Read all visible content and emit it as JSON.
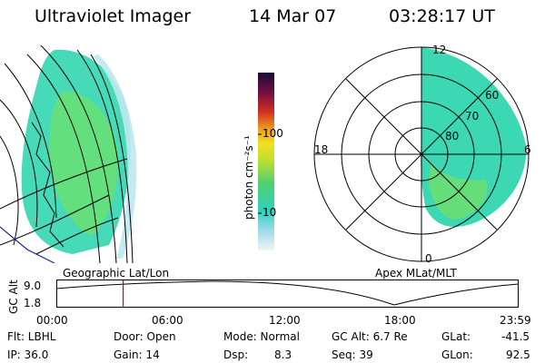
{
  "header": {
    "instrument": "Ultraviolet Imager",
    "date": "14 Mar 07",
    "time": "03:28:17 UT"
  },
  "colorbar": {
    "unit_label": "photon cm⁻²s⁻¹",
    "ticks": [
      "100",
      "10"
    ]
  },
  "geographic_panel": {
    "label": "Geographic Lat/Lon"
  },
  "polar_panel": {
    "label": "Apex MLat/MLT",
    "mlt_labels": [
      "12",
      "18",
      "6",
      "0"
    ],
    "lat_labels": [
      "60",
      "70",
      "80"
    ]
  },
  "altitude_plot": {
    "y_axis_label": "GC Alt",
    "y_max": "9.0",
    "y_min": "1.8",
    "time_ticks": [
      "00:00",
      "06:00",
      "12:00",
      "18:00",
      "23:59"
    ],
    "current_time_marker_hours": 3.47,
    "marker_color": "#d00000"
  },
  "status": {
    "filter": "Flt: LBHL",
    "ip": "IP: 36.0",
    "door": "Door: Open",
    "gain": "Gain: 14",
    "mode": "Mode: Normal",
    "dsp_label": "Dsp:",
    "dsp_value": "8.3",
    "gc_alt": "GC Alt: 6.7 Re",
    "seq": "Seq: 39",
    "glat_label": "GLat:",
    "glat_value": "-41.5",
    "glon_label": "GLon:",
    "glon_value": "92.5"
  },
  "colors": {
    "aurora_main": "#3cd8b4",
    "aurora_bright": "#7ee05a",
    "colorbar_top": "#1a0b3a",
    "colorbar_bottom": "#f0f4f4"
  }
}
